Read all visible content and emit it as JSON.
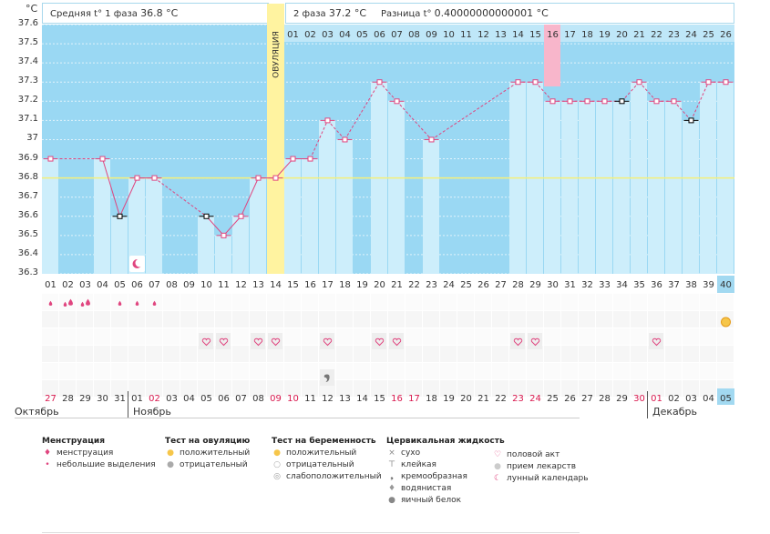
{
  "header": {
    "unit": "°C",
    "phase1_label": "Средняя t° 1 фаза",
    "phase1_value": "36.8 °C",
    "phase2_label": "2 фаза",
    "phase2_value": "37.2 °C",
    "diff_label": "Разница t°",
    "diff_value": "0.40000000000001 °C"
  },
  "ovulation_label": "ОВУЛЯЦИЯ",
  "months": {
    "left": "Октябрь",
    "middle": "Ноябрь",
    "right": "Декабрь"
  },
  "colors": {
    "background": "#9ad8f3",
    "bar": "#cdeefb",
    "ovulation": "#fff3a0",
    "highlight": "#f8b6cb",
    "line": "#e0457f",
    "coverline": "#f5f07a",
    "selected": "#a2d9f1"
  },
  "chart_data": {
    "type": "line",
    "title": "",
    "ylim": [
      36.3,
      37.6
    ],
    "yticks": [
      "37.6",
      "37.5",
      "37.4",
      "37.3",
      "37.2",
      "37.1",
      "37",
      "36.9",
      "36.8",
      "36.7",
      "36.6",
      "36.5",
      "36.4",
      "36.3"
    ],
    "coverline": 36.8,
    "ovulation_day": 14,
    "highlight_phase_day": 16,
    "cycle_days": [
      "01",
      "02",
      "03",
      "04",
      "05",
      "06",
      "07",
      "08",
      "09",
      "10",
      "11",
      "12",
      "13",
      "14",
      "15",
      "16",
      "17",
      "18",
      "19",
      "20",
      "21",
      "22",
      "23",
      "24",
      "25",
      "26",
      "27",
      "28",
      "29",
      "30",
      "31",
      "32",
      "33",
      "34",
      "35",
      "36",
      "37",
      "38",
      "39",
      "40"
    ],
    "phase_days": [
      "01",
      "02",
      "03",
      "04",
      "05",
      "06",
      "07",
      "08",
      "09",
      "10",
      "11",
      "12",
      "13",
      "14",
      "15",
      "16",
      "17",
      "18",
      "19",
      "20",
      "21",
      "22",
      "23",
      "24",
      "25",
      "26"
    ],
    "dates": [
      "27",
      "28",
      "29",
      "30",
      "31",
      "01",
      "02",
      "03",
      "04",
      "05",
      "06",
      "07",
      "08",
      "09",
      "10",
      "11",
      "12",
      "13",
      "14",
      "15",
      "16",
      "17",
      "18",
      "19",
      "20",
      "21",
      "22",
      "23",
      "24",
      "25",
      "26",
      "27",
      "28",
      "29",
      "30",
      "01",
      "02",
      "03",
      "04",
      "05"
    ],
    "red_dates": [
      1,
      7,
      14,
      15,
      21,
      22,
      28,
      29,
      35,
      36
    ],
    "temperatures": [
      36.9,
      null,
      null,
      36.9,
      36.6,
      36.8,
      36.8,
      null,
      null,
      36.6,
      36.5,
      36.6,
      36.8,
      36.8,
      36.9,
      36.9,
      37.1,
      37.0,
      null,
      37.3,
      37.2,
      null,
      37.0,
      null,
      null,
      null,
      null,
      37.3,
      37.3,
      37.2,
      37.2,
      37.2,
      37.2,
      37.2,
      37.3,
      37.2,
      37.2,
      37.1,
      37.3,
      37.3
    ],
    "excluded_days": [
      5,
      10,
      34,
      38
    ],
    "menstruation": {
      "heavy": [
        2,
        3
      ],
      "light": [
        1,
        5,
        6,
        7
      ]
    },
    "intercourse_days": [
      10,
      11,
      13,
      14,
      17,
      20,
      21,
      28,
      29,
      36
    ],
    "moon_day": 6,
    "creamy_day": 17,
    "pregnancy_test_day": 40
  },
  "legend": {
    "groups": [
      {
        "title": "Менструация",
        "items": [
          {
            "icon": "menstruation-heavy-icon",
            "label": "менструация"
          },
          {
            "icon": "menstruation-light-icon",
            "label": "небольшие выделения"
          }
        ]
      },
      {
        "title": "Тест на овуляцию",
        "items": [
          {
            "icon": "ovulation-positive-icon",
            "label": "положительный"
          },
          {
            "icon": "ovulation-negative-icon",
            "label": "отрицательный"
          }
        ]
      },
      {
        "title": "Тест на беременность",
        "items": [
          {
            "icon": "pregnancy-positive-icon",
            "label": "положительный"
          },
          {
            "icon": "pregnancy-negative-icon",
            "label": "отрицательный"
          },
          {
            "icon": "pregnancy-weak-icon",
            "label": "слабоположительный"
          }
        ]
      },
      {
        "title": "Цервикальная жидкость",
        "items": [
          {
            "icon": "dry-icon",
            "label": "сухо"
          },
          {
            "icon": "sticky-icon",
            "label": "клейкая"
          },
          {
            "icon": "creamy-icon",
            "label": "кремообразная"
          },
          {
            "icon": "watery-icon",
            "label": "водянистая"
          },
          {
            "icon": "egg-white-icon",
            "label": "яичный белок"
          }
        ]
      },
      {
        "title": "",
        "items": [
          {
            "icon": "heart-icon",
            "label": "половой акт"
          },
          {
            "icon": "medicine-icon",
            "label": "прием лекарств"
          },
          {
            "icon": "moon-icon",
            "label": "лунный календарь"
          }
        ]
      }
    ]
  }
}
